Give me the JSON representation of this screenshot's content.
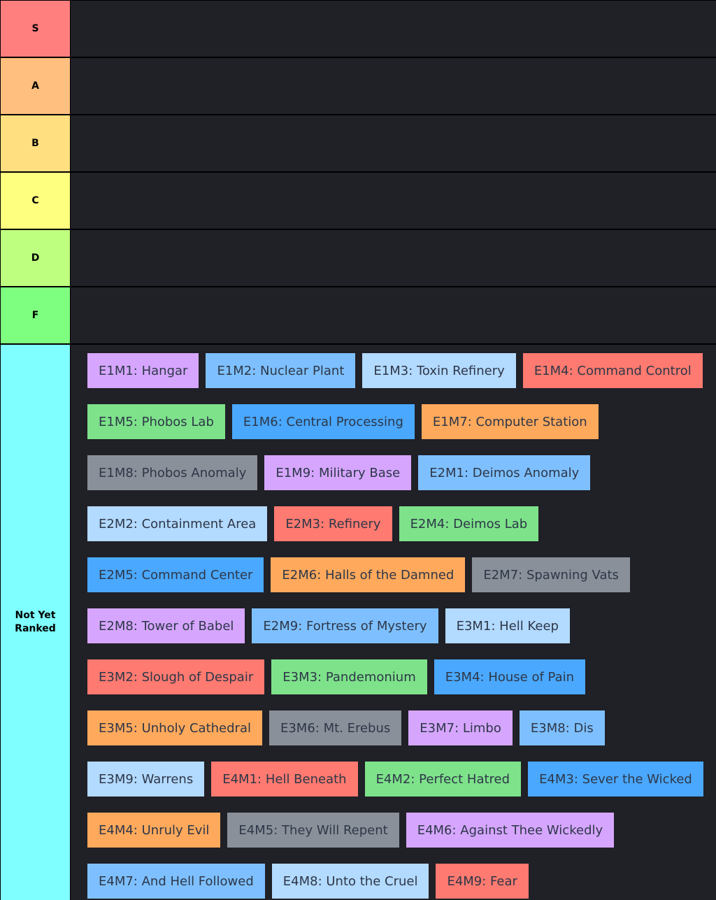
{
  "tiers": [
    {
      "id": "s",
      "label": "S",
      "color": "#ff7f7f"
    },
    {
      "id": "a",
      "label": "A",
      "color": "#ffbf7f"
    },
    {
      "id": "b",
      "label": "B",
      "color": "#ffdf7f"
    },
    {
      "id": "c",
      "label": "C",
      "color": "#ffff7f"
    },
    {
      "id": "d",
      "label": "D",
      "color": "#bfff7f"
    },
    {
      "id": "f",
      "label": "F",
      "color": "#7fff7f"
    }
  ],
  "pool": {
    "label": "Not Yet Ranked",
    "color": "#7fffff",
    "items": [
      {
        "label": "E1M1: Hangar",
        "color": "#d6a6ff"
      },
      {
        "label": "E1M2: Nuclear Plant",
        "color": "#7ec0ff"
      },
      {
        "label": "E1M3: Toxin Refinery",
        "color": "#b3daff"
      },
      {
        "label": "E1M4: Command Control",
        "color": "#ff7a70"
      },
      {
        "label": "E1M5: Phobos Lab",
        "color": "#7ee28a"
      },
      {
        "label": "E1M6: Central Processing",
        "color": "#4aa8ff"
      },
      {
        "label": "E1M7: Computer Station",
        "color": "#ffa95c"
      },
      {
        "label": "E1M8: Phobos Anomaly",
        "color": "#8a9099"
      },
      {
        "label": "E1M9: Military Base",
        "color": "#d6a6ff"
      },
      {
        "label": "E2M1: Deimos Anomaly",
        "color": "#7ec0ff"
      },
      {
        "label": "E2M2: Containment Area",
        "color": "#b3daff"
      },
      {
        "label": "E2M3: Refinery",
        "color": "#ff7a70"
      },
      {
        "label": "E2M4: Deimos Lab",
        "color": "#7ee28a"
      },
      {
        "label": "E2M5: Command Center",
        "color": "#4aa8ff"
      },
      {
        "label": "E2M6: Halls of the Damned",
        "color": "#ffa95c"
      },
      {
        "label": "E2M7: Spawning Vats",
        "color": "#8a9099"
      },
      {
        "label": "E2M8: Tower of Babel",
        "color": "#d6a6ff"
      },
      {
        "label": "E2M9: Fortress of Mystery",
        "color": "#7ec0ff"
      },
      {
        "label": "E3M1: Hell Keep",
        "color": "#b3daff"
      },
      {
        "label": "E3M2: Slough of Despair",
        "color": "#ff7a70"
      },
      {
        "label": "E3M3: Pandemonium",
        "color": "#7ee28a"
      },
      {
        "label": "E3M4: House of Pain",
        "color": "#4aa8ff"
      },
      {
        "label": "E3M5: Unholy Cathedral",
        "color": "#ffa95c"
      },
      {
        "label": "E3M6: Mt. Erebus",
        "color": "#8a9099"
      },
      {
        "label": "E3M7: Limbo",
        "color": "#d6a6ff"
      },
      {
        "label": "E3M8: Dis",
        "color": "#7ec0ff"
      },
      {
        "label": "E3M9: Warrens",
        "color": "#b3daff"
      },
      {
        "label": "E4M1: Hell Beneath",
        "color": "#ff7a70"
      },
      {
        "label": "E4M2: Perfect Hatred",
        "color": "#7ee28a"
      },
      {
        "label": "E4M3: Sever the Wicked",
        "color": "#4aa8ff"
      },
      {
        "label": "E4M4: Unruly Evil",
        "color": "#ffa95c"
      },
      {
        "label": "E4M5: They Will Repent",
        "color": "#8a9099"
      },
      {
        "label": "E4M6: Against Thee Wickedly",
        "color": "#d6a6ff"
      },
      {
        "label": "E4M7: And Hell Followed",
        "color": "#7ec0ff"
      },
      {
        "label": "E4M8: Unto the Cruel",
        "color": "#b3daff"
      },
      {
        "label": "E4M9: Fear",
        "color": "#ff7a70"
      }
    ]
  }
}
